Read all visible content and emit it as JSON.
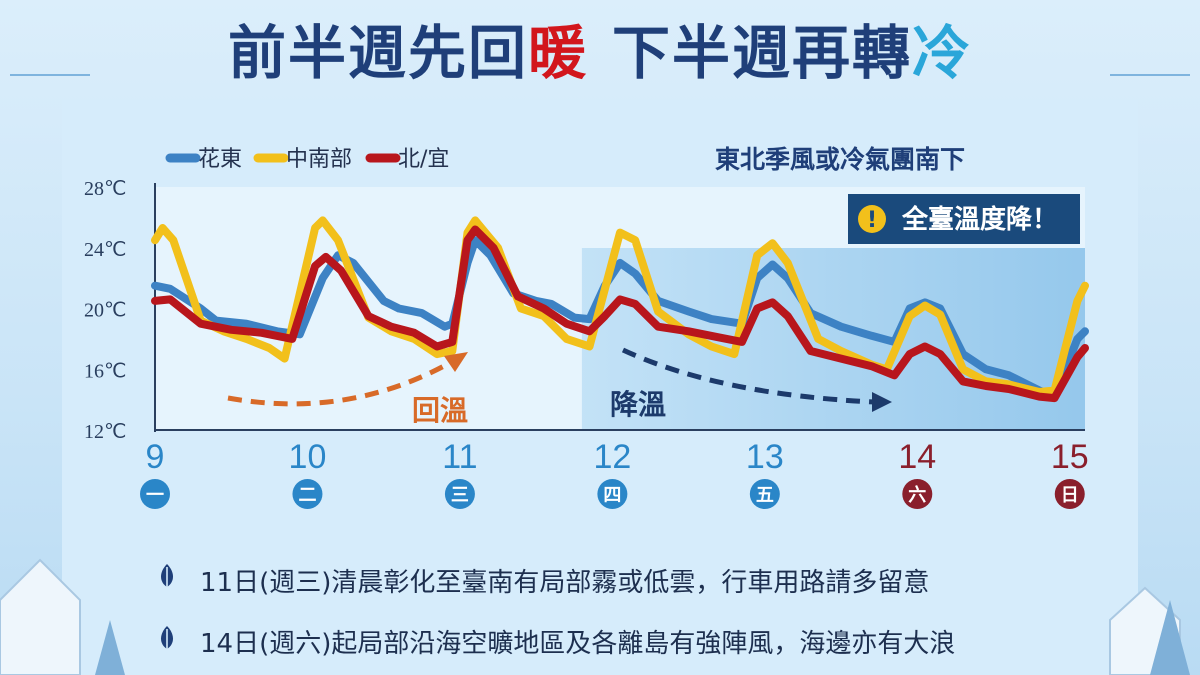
{
  "header": {
    "title_part1": "前半週先回",
    "title_warm": "暖",
    "title_part2": "下半週再轉",
    "title_cold": "冷"
  },
  "colors": {
    "title": "#1f3f79",
    "warm": "#d2161c",
    "cold": "#2aa6d9",
    "hualien_taitung": "#3d82c4",
    "central_south": "#f2c01b",
    "north_yilan": "#b8161c",
    "warm_arrow": "#d86a28",
    "cool_arrow": "#1c3a6b",
    "weekend_badge": "#8a1f2c",
    "weekday_badge": "#2a86c8"
  },
  "chart_data": {
    "type": "line",
    "title": "東北季風或冷氣團南下",
    "warning": "全臺溫度降！",
    "y_ticks": [
      "28℃",
      "24℃",
      "20℃",
      "16℃",
      "12℃"
    ],
    "ylim": [
      12,
      28
    ],
    "x_ticks": [
      {
        "day": "9",
        "weekday": "一",
        "weekend": false
      },
      {
        "day": "10",
        "weekday": "二",
        "weekend": false
      },
      {
        "day": "11",
        "weekday": "三",
        "weekend": false
      },
      {
        "day": "12",
        "weekday": "四",
        "weekend": false
      },
      {
        "day": "13",
        "weekday": "五",
        "weekend": false
      },
      {
        "day": "14",
        "weekday": "六",
        "weekend": true
      },
      {
        "day": "15",
        "weekday": "日",
        "weekend": true
      }
    ],
    "xlim": [
      9,
      15.1
    ],
    "annotations": {
      "warming": "回溫",
      "cooling": "降溫"
    },
    "legend_placement": "top-left",
    "series": [
      {
        "name": "花東",
        "color_key": "hualien_taitung",
        "points": [
          [
            9,
            21.5
          ],
          [
            9.1,
            21.3
          ],
          [
            9.3,
            20.0
          ],
          [
            9.4,
            19.2
          ],
          [
            9.6,
            19.0
          ],
          [
            9.8,
            18.5
          ],
          [
            9.95,
            18.3
          ],
          [
            10.1,
            22.0
          ],
          [
            10.2,
            23.5
          ],
          [
            10.3,
            23.0
          ],
          [
            10.5,
            20.5
          ],
          [
            10.6,
            20.0
          ],
          [
            10.75,
            19.7
          ],
          [
            10.9,
            18.8
          ],
          [
            10.95,
            19.0
          ],
          [
            11.05,
            23.0
          ],
          [
            11.1,
            24.5
          ],
          [
            11.2,
            23.5
          ],
          [
            11.35,
            21.0
          ],
          [
            11.5,
            20.5
          ],
          [
            11.6,
            20.3
          ],
          [
            11.75,
            19.4
          ],
          [
            11.85,
            19.3
          ],
          [
            11.95,
            21.5
          ],
          [
            12.05,
            23.0
          ],
          [
            12.15,
            22.3
          ],
          [
            12.3,
            20.5
          ],
          [
            12.5,
            19.8
          ],
          [
            12.65,
            19.3
          ],
          [
            12.85,
            19.0
          ],
          [
            12.95,
            22.0
          ],
          [
            13.05,
            22.9
          ],
          [
            13.15,
            22.0
          ],
          [
            13.3,
            19.7
          ],
          [
            13.5,
            18.8
          ],
          [
            13.7,
            18.2
          ],
          [
            13.85,
            17.8
          ],
          [
            13.95,
            20.0
          ],
          [
            14.05,
            20.4
          ],
          [
            14.15,
            20.0
          ],
          [
            14.3,
            17.0
          ],
          [
            14.45,
            16.0
          ],
          [
            14.6,
            15.6
          ],
          [
            14.8,
            14.6
          ],
          [
            14.9,
            14.2
          ],
          [
            15.05,
            18.0
          ],
          [
            15.1,
            18.5
          ]
        ]
      },
      {
        "name": "中南部",
        "color_key": "central_south",
        "points": [
          [
            9,
            24.5
          ],
          [
            9.05,
            25.3
          ],
          [
            9.12,
            24.5
          ],
          [
            9.3,
            19.2
          ],
          [
            9.45,
            18.5
          ],
          [
            9.6,
            18.0
          ],
          [
            9.75,
            17.4
          ],
          [
            9.85,
            16.7
          ],
          [
            10.05,
            25.3
          ],
          [
            10.1,
            25.8
          ],
          [
            10.2,
            24.5
          ],
          [
            10.4,
            19.4
          ],
          [
            10.55,
            18.5
          ],
          [
            10.7,
            18.0
          ],
          [
            10.85,
            17.0
          ],
          [
            10.95,
            17.2
          ],
          [
            11.05,
            25.0
          ],
          [
            11.1,
            25.8
          ],
          [
            11.25,
            24.0
          ],
          [
            11.4,
            20.0
          ],
          [
            11.55,
            19.5
          ],
          [
            11.7,
            18.0
          ],
          [
            11.85,
            17.5
          ],
          [
            12.05,
            25.0
          ],
          [
            12.15,
            24.5
          ],
          [
            12.3,
            19.8
          ],
          [
            12.5,
            18.3
          ],
          [
            12.65,
            17.5
          ],
          [
            12.8,
            17.0
          ],
          [
            12.95,
            23.5
          ],
          [
            13.05,
            24.3
          ],
          [
            13.15,
            23.0
          ],
          [
            13.35,
            18.0
          ],
          [
            13.5,
            17.2
          ],
          [
            13.7,
            16.3
          ],
          [
            13.8,
            16.0
          ],
          [
            13.95,
            19.5
          ],
          [
            14.05,
            20.2
          ],
          [
            14.15,
            19.6
          ],
          [
            14.3,
            16.0
          ],
          [
            14.45,
            15.2
          ],
          [
            14.6,
            15.0
          ],
          [
            14.8,
            14.5
          ],
          [
            14.9,
            14.6
          ],
          [
            15.05,
            20.5
          ],
          [
            15.1,
            21.5
          ]
        ]
      },
      {
        "name": "北/宜",
        "color_key": "north_yilan",
        "points": [
          [
            9,
            20.5
          ],
          [
            9.1,
            20.6
          ],
          [
            9.3,
            19.0
          ],
          [
            9.5,
            18.6
          ],
          [
            9.7,
            18.4
          ],
          [
            9.9,
            18.0
          ],
          [
            10.05,
            22.8
          ],
          [
            10.12,
            23.4
          ],
          [
            10.22,
            22.5
          ],
          [
            10.4,
            19.5
          ],
          [
            10.55,
            18.8
          ],
          [
            10.7,
            18.4
          ],
          [
            10.85,
            17.5
          ],
          [
            10.95,
            17.8
          ],
          [
            11.05,
            24.5
          ],
          [
            11.1,
            25.2
          ],
          [
            11.22,
            24.0
          ],
          [
            11.38,
            20.8
          ],
          [
            11.55,
            20.0
          ],
          [
            11.7,
            19.0
          ],
          [
            11.85,
            18.5
          ],
          [
            11.95,
            19.5
          ],
          [
            12.05,
            20.6
          ],
          [
            12.15,
            20.3
          ],
          [
            12.3,
            18.8
          ],
          [
            12.5,
            18.5
          ],
          [
            12.7,
            18.1
          ],
          [
            12.85,
            17.8
          ],
          [
            12.95,
            20.0
          ],
          [
            13.05,
            20.4
          ],
          [
            13.15,
            19.5
          ],
          [
            13.3,
            17.2
          ],
          [
            13.5,
            16.7
          ],
          [
            13.7,
            16.2
          ],
          [
            13.85,
            15.6
          ],
          [
            13.95,
            17.0
          ],
          [
            14.05,
            17.5
          ],
          [
            14.15,
            17.0
          ],
          [
            14.3,
            15.2
          ],
          [
            14.45,
            14.9
          ],
          [
            14.6,
            14.7
          ],
          [
            14.8,
            14.2
          ],
          [
            14.9,
            14.1
          ],
          [
            15.05,
            16.8
          ],
          [
            15.1,
            17.4
          ]
        ]
      }
    ]
  },
  "notes": [
    {
      "icon": "leaf-icon",
      "text": "11日(週三)清晨彰化至臺南有局部霧或低雲，行車用路請多留意"
    },
    {
      "icon": "leaf-icon",
      "text": "14日(週六)起局部沿海空曠地區及各離島有強陣風，海邊亦有大浪"
    }
  ]
}
